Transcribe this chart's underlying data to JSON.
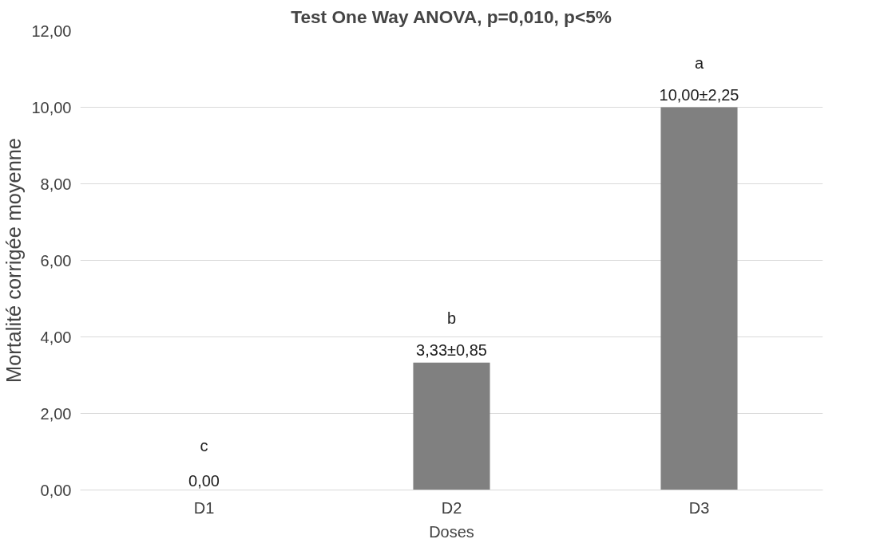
{
  "chart_data": {
    "type": "bar",
    "title": "Test One Way ANOVA, p=0,010, p<5%",
    "xlabel": "Doses",
    "ylabel": "Mortalité corrigée moyenne",
    "categories": [
      "D1",
      "D2",
      "D3"
    ],
    "values": [
      0,
      3.33,
      10.0
    ],
    "value_labels": [
      "0,00",
      "3,33±0,85",
      "10,00±2,25"
    ],
    "color": "#808080",
    "ylim": [
      0,
      12
    ],
    "yticks": [
      {
        "value": 0,
        "label": "0,00"
      },
      {
        "value": 2,
        "label": "2,00"
      },
      {
        "value": 4,
        "label": "4,00"
      },
      {
        "value": 6,
        "label": "6,00"
      },
      {
        "value": 8,
        "label": "8,00"
      },
      {
        "value": 10,
        "label": "10,00"
      },
      {
        "value": 12,
        "label": "12,00"
      }
    ],
    "grid": "y",
    "annotations": [
      {
        "text": "c",
        "x": "D1",
        "y": 0
      },
      {
        "text": "b",
        "x": "D2",
        "y": 3.33
      },
      {
        "text": "a",
        "x": "D3",
        "y": 10.0
      }
    ]
  }
}
